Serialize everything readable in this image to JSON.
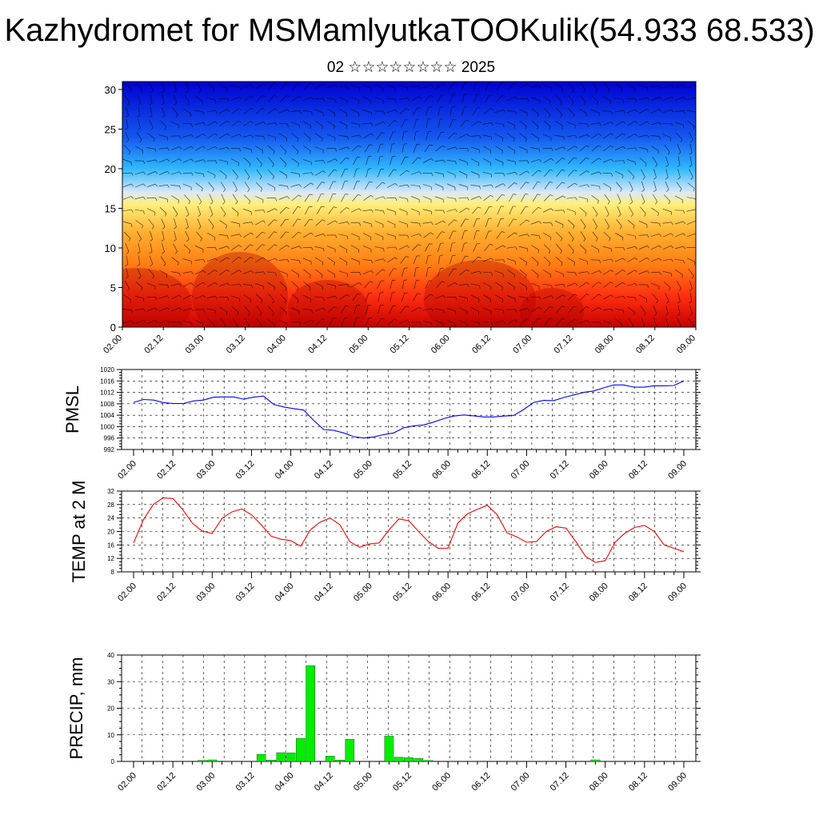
{
  "title": "Kazhydromet for MSMamlyutkaTOOKulik(54.933 68.533)",
  "subtitle": "02 ☆☆☆☆☆☆☆☆ 2025",
  "time_labels": [
    "02.00",
    "02.12",
    "03.00",
    "03.12",
    "04.00",
    "04.12",
    "05.00",
    "05.12",
    "06.00",
    "06.12",
    "07.00",
    "07.12",
    "08.00",
    "08.12",
    "09.00"
  ],
  "chart_data": [
    {
      "type": "heatmap",
      "name": "cross-section",
      "title": "",
      "xlabel": "",
      "ylabel": "",
      "ylim": [
        0,
        31
      ],
      "yticks": [
        0,
        5,
        10,
        15,
        20,
        25,
        30
      ],
      "colors": [
        "#0000d0",
        "#1458ee",
        "#30b8ff",
        "#dde8f6",
        "#ffef7a",
        "#ffb030",
        "#ff7f14",
        "#ff3010",
        "#c80000"
      ],
      "overlay": "wind-barbs"
    },
    {
      "type": "line",
      "ylabel": "PMSL",
      "ylim": [
        992,
        1020
      ],
      "yticks": [
        992,
        996,
        1000,
        1004,
        1008,
        1012,
        1016,
        1020
      ],
      "color": "#0000ff",
      "y": [
        1008.5,
        1009.5,
        1009.3,
        1008.4,
        1008.1,
        1008.1,
        1009.0,
        1009.3,
        1010.3,
        1010.4,
        1010.4,
        1009.6,
        1010.3,
        1010.7,
        1007.8,
        1006.9,
        1006.3,
        1005.8,
        1002.2,
        999.0,
        998.7,
        997.8,
        996.5,
        996.0,
        996.4,
        997.2,
        997.8,
        999.6,
        1000.3,
        1000.6,
        1001.6,
        1002.8,
        1003.7,
        1004.1,
        1003.8,
        1003.4,
        1003.4,
        1003.7,
        1003.9,
        1006.0,
        1008.5,
        1009.2,
        1009.1,
        1010.2,
        1011.1,
        1012.0,
        1012.5,
        1013.6,
        1014.6,
        1014.6,
        1013.8,
        1013.8,
        1014.3,
        1014.3,
        1014.4,
        1016.0
      ]
    },
    {
      "type": "line",
      "ylabel": "TEMP at 2 M",
      "ylim": [
        8,
        32
      ],
      "yticks": [
        8,
        12,
        16,
        20,
        24,
        28,
        32
      ],
      "color": "#ff0000",
      "y": [
        16.6,
        23.5,
        28.0,
        30.0,
        29.8,
        26.5,
        22.4,
        20.1,
        19.4,
        23.9,
        25.8,
        26.7,
        25.0,
        22.0,
        18.6,
        17.7,
        17.3,
        15.6,
        20.5,
        22.8,
        24.0,
        22.0,
        17.0,
        15.3,
        16.3,
        16.6,
        20.5,
        23.7,
        23.2,
        20.0,
        17.0,
        15.0,
        15.0,
        22.5,
        25.3,
        26.6,
        27.8,
        25.0,
        19.6,
        18.4,
        16.8,
        17.0,
        20.0,
        21.4,
        21.0,
        17.0,
        12.6,
        10.8,
        11.3,
        16.8,
        19.5,
        21.2,
        21.8,
        20.0,
        16.0,
        15.0,
        14.0
      ]
    },
    {
      "type": "bar",
      "ylabel": "PRECIP, mm",
      "ylim": [
        0,
        40
      ],
      "yticks": [
        0,
        10,
        20,
        30,
        40
      ],
      "color": "#00ee00",
      "y": [
        0,
        0,
        0,
        0,
        0,
        0,
        0,
        0.4,
        0.6,
        0,
        0,
        0,
        0,
        2.7,
        0.5,
        3.3,
        3.2,
        8.7,
        36.0,
        0,
        2.0,
        0.5,
        8.3,
        0,
        0,
        0,
        9.5,
        1.6,
        1.4,
        1.1,
        0.4,
        0,
        0,
        0,
        0,
        0,
        0,
        0,
        0,
        0,
        0,
        0,
        0,
        0,
        0,
        0,
        0,
        0.6,
        0,
        0,
        0,
        0,
        0,
        0,
        0,
        0,
        0
      ]
    }
  ]
}
